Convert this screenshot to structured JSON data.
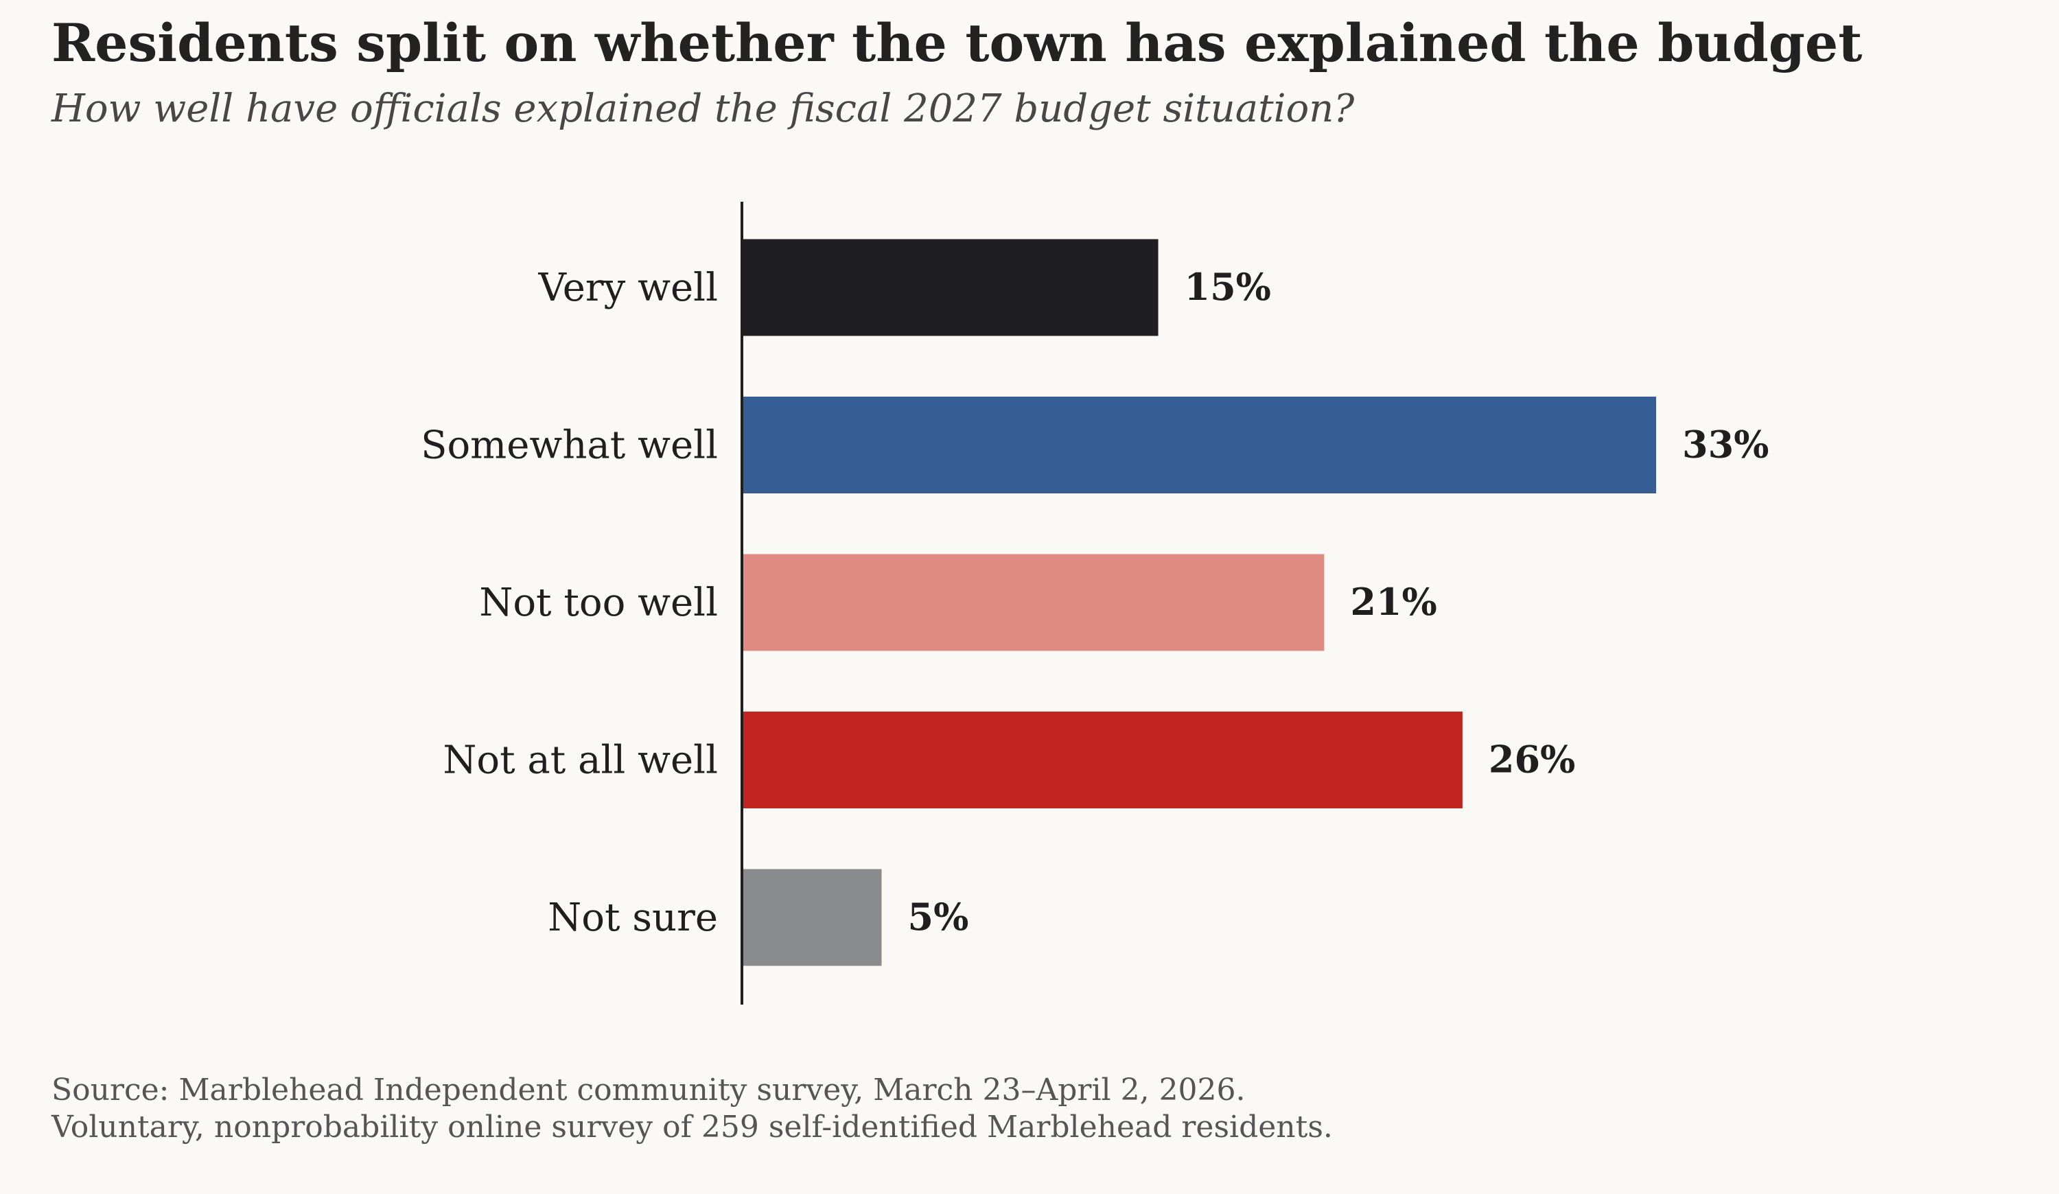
{
  "chart_data": {
    "type": "bar",
    "orientation": "horizontal",
    "title": "Residents split on whether the town has explained the budget",
    "subtitle": "How well have officials explained the fiscal 2027 budget situation?",
    "categories": [
      "Very well",
      "Somewhat well",
      "Not too well",
      "Not at all well",
      "Not sure"
    ],
    "values": [
      15,
      33,
      21,
      26,
      5
    ],
    "value_labels": [
      "15%",
      "33%",
      "21%",
      "26%",
      "5%"
    ],
    "colors": [
      "#1f1f21",
      "#365e95",
      "#df8a83",
      "#c2241f",
      "#8a8b8d"
    ],
    "xlim": [
      0,
      35
    ],
    "unit": "%",
    "grid": false,
    "xlabel": "",
    "ylabel": ""
  },
  "footer": {
    "source": "Source: Marblehead Independent community survey, March 23–April 2, 2026.",
    "note": "Voluntary, nonprobability online survey of 259 self-identified Marblehead residents."
  }
}
